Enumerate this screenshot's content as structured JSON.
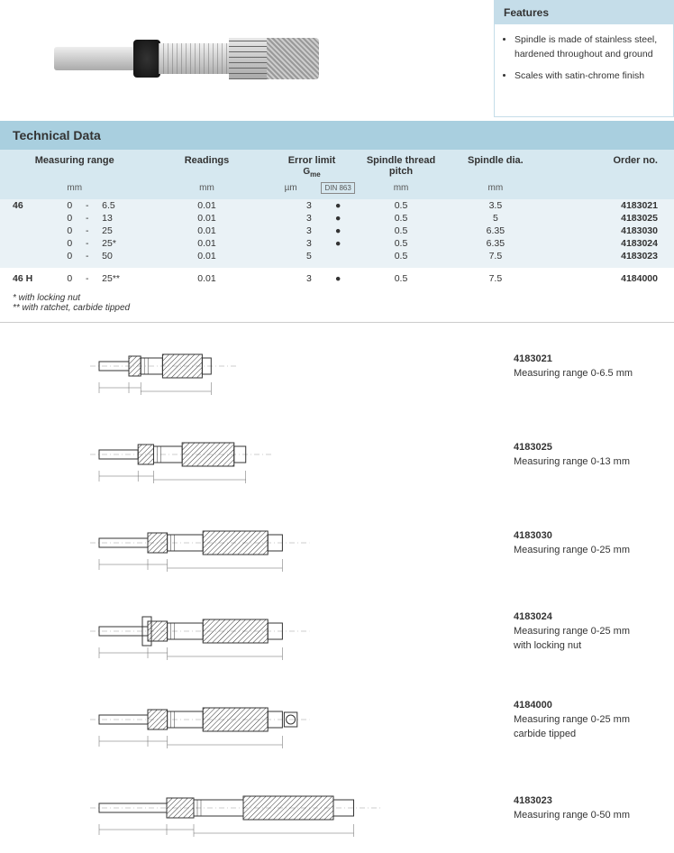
{
  "features": {
    "heading": "Features",
    "items": [
      "Spindle is made of stainless steel, hardened throughout and ground",
      "Scales with satin-chrome finish"
    ]
  },
  "technicalData": {
    "heading": "Technical Data",
    "columns": {
      "measuringRange": "Measuring range",
      "readings": "Readings",
      "errorLimit": "Error limit",
      "gme": "G",
      "gmeSub": "me",
      "din": "DIN 863",
      "spindleThreadPitch": "Spindle thread pitch",
      "spindleDia": "Spindle dia.",
      "orderNo": "Order no."
    },
    "units": {
      "mm": "mm",
      "um": "µm"
    },
    "groups": [
      {
        "label": "46",
        "cls": "grp-46",
        "rows": [
          {
            "rangeFrom": "0",
            "dash": "-",
            "rangeTo": "6.5",
            "readings": "0.01",
            "error": "3",
            "dot": "●",
            "pitch": "0.5",
            "dia": "3.5",
            "order": "4183021"
          },
          {
            "rangeFrom": "0",
            "dash": "-",
            "rangeTo": "13",
            "readings": "0.01",
            "error": "3",
            "dot": "●",
            "pitch": "0.5",
            "dia": "5",
            "order": "4183025"
          },
          {
            "rangeFrom": "0",
            "dash": "-",
            "rangeTo": "25",
            "readings": "0.01",
            "error": "3",
            "dot": "●",
            "pitch": "0.5",
            "dia": "6.35",
            "order": "4183030"
          },
          {
            "rangeFrom": "0",
            "dash": "-",
            "rangeTo": "25*",
            "readings": "0.01",
            "error": "3",
            "dot": "●",
            "pitch": "0.5",
            "dia": "6.35",
            "order": "4183024"
          },
          {
            "rangeFrom": "0",
            "dash": "-",
            "rangeTo": "50",
            "readings": "0.01",
            "error": "5",
            "dot": "",
            "pitch": "0.5",
            "dia": "7.5",
            "order": "4183023"
          }
        ]
      },
      {
        "label": "46 H",
        "cls": "grp-46h",
        "rows": [
          {
            "rangeFrom": "0",
            "dash": "-",
            "rangeTo": "25**",
            "readings": "0.01",
            "error": "3",
            "dot": "●",
            "pitch": "0.5",
            "dia": "7.5",
            "order": "4184000"
          }
        ]
      }
    ],
    "footnotes": [
      "*   with locking nut",
      "** with ratchet, carbide tipped"
    ]
  },
  "drawings": [
    {
      "order": "4183021",
      "desc": "Measuring range 0-6.5 mm",
      "scale": 0.55,
      "nut": false,
      "ratchet": false
    },
    {
      "order": "4183025",
      "desc": "Measuring range 0-13 mm",
      "scale": 0.72,
      "nut": false,
      "ratchet": false
    },
    {
      "order": "4183030",
      "desc": "Measuring range 0-25 mm",
      "scale": 0.9,
      "nut": false,
      "ratchet": false
    },
    {
      "order": "4183024",
      "desc": "Measuring range 0-25 mm\nwith locking nut",
      "scale": 0.9,
      "nut": true,
      "ratchet": false
    },
    {
      "order": "4184000",
      "desc": "Measuring range 0-25 mm\ncarbide tipped",
      "scale": 0.9,
      "nut": false,
      "ratchet": true
    },
    {
      "order": "4183023",
      "desc": "Measuring range 0-50 mm",
      "scale": 1.25,
      "nut": false,
      "ratchet": false
    }
  ],
  "colors": {
    "headerBlue": "#a9cfdf",
    "lightBlue": "#d6e8f0",
    "paleBlue": "#eaf2f6",
    "boxBorder": "#c5dde9"
  }
}
